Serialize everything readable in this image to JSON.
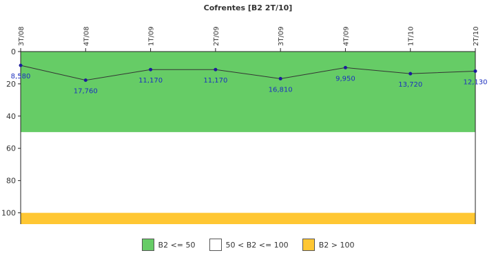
{
  "chart_data": {
    "type": "line",
    "title": "Cofrentes [B2 2T/10]",
    "categories": [
      "3T/08",
      "4T/08",
      "1T/09",
      "2T/09",
      "3T/09",
      "4T/09",
      "1T/10",
      "2T/10"
    ],
    "series": [
      {
        "values": [
          8.58,
          17.76,
          11.17,
          11.17,
          16.81,
          9.95,
          13.72,
          12.13
        ],
        "value_labels": [
          "8,580",
          "17,760",
          "11,170",
          "11,170",
          "16,810",
          "9,950",
          "13,720",
          "12,130"
        ],
        "line_color": "#333333",
        "marker_color": "#1c1c9c"
      }
    ],
    "y_axis": {
      "inverted": true,
      "ylim": [
        0,
        107
      ],
      "ticks": [
        0,
        20,
        40,
        60,
        80,
        100
      ]
    },
    "bands": [
      {
        "from": 0,
        "to": 50,
        "color": "#66cc66"
      },
      {
        "from": 50,
        "to": 100,
        "color": "#ffffff"
      },
      {
        "from": 100,
        "to": 107,
        "color": "#ffc733"
      }
    ],
    "legend": {
      "position": "bottom-center",
      "items": [
        {
          "label": "B2 <= 50",
          "color": "#66cc66"
        },
        {
          "label": "50 < B2 <= 100",
          "color": "#ffffff"
        },
        {
          "label": "B2 > 100",
          "color": "#ffc733"
        }
      ]
    }
  }
}
